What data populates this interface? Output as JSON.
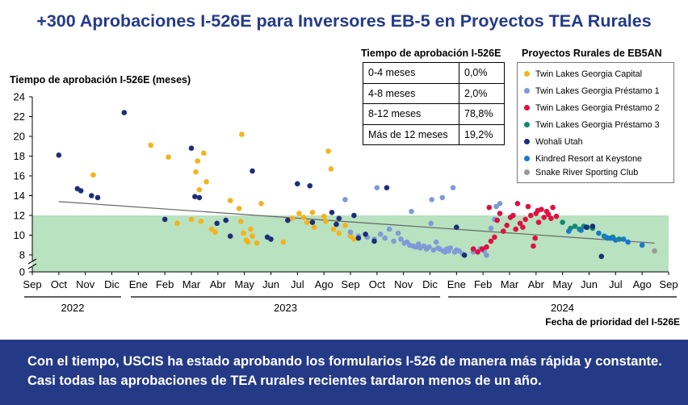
{
  "title": "+300 Aprobaciones I-526E para Inversores EB-5 en Proyectos TEA Rurales",
  "banner": "Con el tiempo, USCIS ha estado aprobando los formularios I-526 de manera más rápida y constante. Casi todas las aprobaciones de TEA rurales recientes tardaron menos de un año.",
  "table": {
    "title": "Tiempo de aprobación I-526E",
    "rows": [
      {
        "label": "0-4 meses",
        "value": "0,0%"
      },
      {
        "label": "4-8 meses",
        "value": "2,0%"
      },
      {
        "label": "8-12 meses",
        "value": "78,8%"
      },
      {
        "label": "Más de 12 meses",
        "value": "19,2%"
      }
    ]
  },
  "chart_data": {
    "type": "scatter",
    "ylabel": "Tiempo de aprobación I-526E (meses)",
    "xlabel": "Fecha de prioridad del I-526E",
    "ylim": [
      0,
      24
    ],
    "y_axis_break": [
      0,
      7
    ],
    "yticks": [
      0,
      8,
      10,
      12,
      14,
      16,
      18,
      20,
      22,
      24
    ],
    "xlim": [
      "2022-09",
      "2024-09"
    ],
    "xticks": [
      "Sep",
      "Oct",
      "Nov",
      "Dic",
      "Ene",
      "Feb",
      "Mar",
      "Abr",
      "May",
      "Jun",
      "Jul",
      "Ago",
      "Sep",
      "Oct",
      "Nov",
      "Dic",
      "Ene",
      "Feb",
      "Mar",
      "Abr",
      "May",
      "Jun",
      "Jul",
      "Ago",
      "Sep"
    ],
    "years": [
      {
        "label": "2022",
        "from": "2022-09",
        "to": "2022-12"
      },
      {
        "label": "2023",
        "from": "2023-01",
        "to": "2023-12"
      },
      {
        "label": "2024",
        "from": "2024-01",
        "to": "2024-09"
      }
    ],
    "band": {
      "from": 7,
      "to": 12,
      "color": "#b8e2c0"
    },
    "trend": {
      "start": [
        "2022-10-01",
        13.4
      ],
      "end": [
        "2024-08-15",
        9.2
      ],
      "color": "#666666"
    },
    "legend_title": "Proyectos Rurales de EB5AN",
    "series": [
      {
        "name": "Twin Lakes Georgia Capital",
        "color": "#f5b21a",
        "points": [
          [
            "2022-11-10",
            16.1
          ],
          [
            "2023-01-15",
            19.1
          ],
          [
            "2023-02-05",
            17.9
          ],
          [
            "2023-02-15",
            11.2
          ],
          [
            "2023-03-01",
            11.6
          ],
          [
            "2023-03-06",
            16.4
          ],
          [
            "2023-03-08",
            17.5
          ],
          [
            "2023-03-10",
            14.6
          ],
          [
            "2023-03-12",
            11.4
          ],
          [
            "2023-03-15",
            18.3
          ],
          [
            "2023-03-18",
            15.4
          ],
          [
            "2023-03-24",
            10.6
          ],
          [
            "2023-03-28",
            10.3
          ],
          [
            "2023-04-15",
            13.5
          ],
          [
            "2023-04-28",
            20.2
          ],
          [
            "2023-04-25",
            12.7
          ],
          [
            "2023-04-27",
            11.4
          ],
          [
            "2023-04-30",
            10.2
          ],
          [
            "2023-05-03",
            9.5
          ],
          [
            "2023-05-05",
            9.3
          ],
          [
            "2023-05-08",
            10.6
          ],
          [
            "2023-05-10",
            9.9
          ],
          [
            "2023-05-15",
            9.2
          ],
          [
            "2023-05-20",
            13.2
          ],
          [
            "2023-06-15",
            9.3
          ],
          [
            "2023-06-25",
            11.7
          ],
          [
            "2023-07-03",
            12.2
          ],
          [
            "2023-07-08",
            11.8
          ],
          [
            "2023-07-12",
            11.3
          ],
          [
            "2023-07-20",
            10.8
          ],
          [
            "2023-08-01",
            11.9
          ],
          [
            "2023-08-03",
            11.4
          ],
          [
            "2023-08-06",
            18.5
          ],
          [
            "2023-08-09",
            16.7
          ],
          [
            "2023-08-12",
            10.6
          ],
          [
            "2023-08-25",
            11.0
          ],
          [
            "2023-09-01",
            9.9
          ],
          [
            "2023-09-05",
            9.6
          ],
          [
            "2023-07-18",
            12.3
          ],
          [
            "2023-08-18",
            10.2
          ]
        ]
      },
      {
        "name": "Twin Lakes Georgia Préstamo 1",
        "color": "#7f9ad8",
        "points": [
          [
            "2023-08-25",
            13.6
          ],
          [
            "2023-09-01",
            10.3
          ],
          [
            "2023-09-10",
            9.9
          ],
          [
            "2023-09-20",
            9.8
          ],
          [
            "2023-09-28",
            9.6
          ],
          [
            "2023-10-01",
            14.8
          ],
          [
            "2023-10-05",
            10.1
          ],
          [
            "2023-10-10",
            9.7
          ],
          [
            "2023-10-15",
            10.6
          ],
          [
            "2023-10-20",
            9.4
          ],
          [
            "2023-10-25",
            10.2
          ],
          [
            "2023-10-28",
            9.6
          ],
          [
            "2023-11-02",
            9.2
          ],
          [
            "2023-11-05",
            9.3
          ],
          [
            "2023-11-08",
            9.0
          ],
          [
            "2023-11-10",
            12.4
          ],
          [
            "2023-11-12",
            8.9
          ],
          [
            "2023-11-15",
            8.8
          ],
          [
            "2023-11-18",
            9.1
          ],
          [
            "2023-11-20",
            8.7
          ],
          [
            "2023-11-24",
            8.9
          ],
          [
            "2023-11-27",
            8.6
          ],
          [
            "2023-11-30",
            8.8
          ],
          [
            "2023-12-02",
            11.2
          ],
          [
            "2023-12-03",
            13.6
          ],
          [
            "2023-12-05",
            8.5
          ],
          [
            "2023-12-08",
            9.3
          ],
          [
            "2023-12-10",
            8.7
          ],
          [
            "2023-12-12",
            8.6
          ],
          [
            "2023-12-15",
            13.8
          ],
          [
            "2023-12-16",
            8.4
          ],
          [
            "2023-12-18",
            8.3
          ],
          [
            "2023-12-20",
            8.6
          ],
          [
            "2023-12-22",
            8.4
          ],
          [
            "2023-12-24",
            8.7
          ],
          [
            "2023-12-27",
            14.8
          ],
          [
            "2023-12-29",
            8.3
          ],
          [
            "2024-01-01",
            8.5
          ],
          [
            "2024-01-04",
            8.4
          ],
          [
            "2024-01-08",
            8.1
          ],
          [
            "2024-01-20",
            8.3
          ],
          [
            "2024-02-05",
            7.9
          ],
          [
            "2024-02-10",
            10.7
          ],
          [
            "2024-02-14",
            11.6
          ],
          [
            "2024-02-16",
            12.9
          ],
          [
            "2024-02-20",
            13.2
          ],
          [
            "2024-01-28",
            8.6
          ],
          [
            "2024-02-02",
            8.4
          ]
        ]
      },
      {
        "name": "Twin Lakes Georgia Préstamo 2",
        "color": "#e01040",
        "points": [
          [
            "2024-01-20",
            8.6
          ],
          [
            "2024-01-25",
            8.3
          ],
          [
            "2024-01-30",
            8.6
          ],
          [
            "2024-02-05",
            8.8
          ],
          [
            "2024-02-08",
            12.8
          ],
          [
            "2024-02-10",
            9.4
          ],
          [
            "2024-02-14",
            9.8
          ],
          [
            "2024-02-17",
            11.5
          ],
          [
            "2024-02-20",
            12.2
          ],
          [
            "2024-02-24",
            10.4
          ],
          [
            "2024-02-28",
            11.0
          ],
          [
            "2024-03-02",
            11.8
          ],
          [
            "2024-03-05",
            12.0
          ],
          [
            "2024-03-08",
            10.6
          ],
          [
            "2024-03-10",
            13.2
          ],
          [
            "2024-03-13",
            11.2
          ],
          [
            "2024-03-16",
            10.8
          ],
          [
            "2024-03-19",
            11.6
          ],
          [
            "2024-03-22",
            12.9
          ],
          [
            "2024-03-25",
            12.0
          ],
          [
            "2024-03-28",
            8.9
          ],
          [
            "2024-04-01",
            12.2
          ],
          [
            "2024-04-04",
            11.3
          ],
          [
            "2024-04-07",
            12.6
          ],
          [
            "2024-04-10",
            11.8
          ],
          [
            "2024-04-13",
            12.4
          ],
          [
            "2024-04-15",
            12.1
          ],
          [
            "2024-04-18",
            11.7
          ],
          [
            "2024-04-20",
            12.8
          ],
          [
            "2024-04-24",
            11.9
          ],
          [
            "2024-03-30",
            9.7
          ],
          [
            "2024-04-03",
            12.5
          ]
        ]
      },
      {
        "name": "Twin Lakes Georgia Préstamo 3",
        "color": "#138a72",
        "points": [
          [
            "2024-05-01",
            11.3
          ],
          [
            "2024-05-10",
            10.7
          ],
          [
            "2024-05-15",
            10.9
          ],
          [
            "2024-05-20",
            10.6
          ],
          [
            "2024-05-25",
            10.9
          ],
          [
            "2024-05-29",
            10.8
          ],
          [
            "2024-06-05",
            10.7
          ],
          [
            "2024-06-18",
            9.9
          ],
          [
            "2024-06-22",
            9.7
          ],
          [
            "2024-06-28",
            9.8
          ],
          [
            "2024-07-05",
            9.6
          ]
        ]
      },
      {
        "name": "Wohali Utah",
        "color": "#1d2e78",
        "points": [
          [
            "2022-10-01",
            18.1
          ],
          [
            "2022-10-22",
            14.7
          ],
          [
            "2022-10-26",
            14.5
          ],
          [
            "2022-11-08",
            14.0
          ],
          [
            "2022-11-15",
            13.8
          ],
          [
            "2022-12-15",
            22.4
          ],
          [
            "2023-02-01",
            11.6
          ],
          [
            "2023-03-01",
            18.8
          ],
          [
            "2023-03-05",
            13.9
          ],
          [
            "2023-03-10",
            13.8
          ],
          [
            "2023-03-30",
            11.2
          ],
          [
            "2023-04-10",
            11.5
          ],
          [
            "2023-04-15",
            9.9
          ],
          [
            "2023-05-10",
            16.5
          ],
          [
            "2023-05-27",
            9.8
          ],
          [
            "2023-06-01",
            9.6
          ],
          [
            "2023-06-20",
            11.5
          ],
          [
            "2023-07-01",
            15.2
          ],
          [
            "2023-07-15",
            15.0
          ],
          [
            "2023-07-18",
            11.3
          ],
          [
            "2023-08-10",
            12.3
          ],
          [
            "2023-08-15",
            11.1
          ],
          [
            "2023-08-18",
            11.7
          ],
          [
            "2023-09-05",
            12.0
          ],
          [
            "2023-09-10",
            9.7
          ],
          [
            "2023-09-18",
            10.1
          ],
          [
            "2023-09-28",
            9.4
          ],
          [
            "2023-10-12",
            14.8
          ],
          [
            "2024-01-01",
            10.8
          ],
          [
            "2024-01-10",
            7.9
          ],
          [
            "2024-05-28",
            10.8
          ],
          [
            "2024-06-05",
            10.9
          ],
          [
            "2024-06-15",
            7.3
          ]
        ]
      },
      {
        "name": "Kindred Resort at Keystone",
        "color": "#1a78d0",
        "points": [
          [
            "2024-05-08",
            10.4
          ],
          [
            "2024-05-22",
            10.5
          ],
          [
            "2024-06-12",
            10.2
          ],
          [
            "2024-06-20",
            9.8
          ],
          [
            "2024-06-25",
            9.7
          ],
          [
            "2024-07-01",
            9.5
          ],
          [
            "2024-07-10",
            9.6
          ],
          [
            "2024-07-15",
            9.3
          ],
          [
            "2024-08-01",
            9.0
          ]
        ]
      },
      {
        "name": "Snake River Sporting Club",
        "color": "#999999",
        "points": [
          [
            "2024-08-15",
            8.4
          ]
        ]
      }
    ]
  }
}
